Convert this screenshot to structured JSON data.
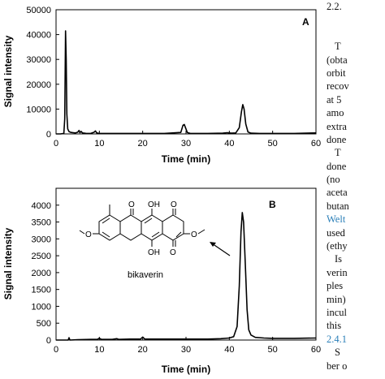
{
  "chart_data": [
    {
      "panel_label": "A",
      "type": "line",
      "xlabel": "Time (min)",
      "ylabel": "Signal intensity",
      "xlim": [
        0,
        60
      ],
      "ylim": [
        0,
        50000
      ],
      "xticks": [
        "0",
        "10",
        "20",
        "30",
        "40",
        "50",
        "60"
      ],
      "yticks": [
        "0",
        "10000",
        "20000",
        "30000",
        "40000",
        "50000"
      ],
      "grid": false,
      "series": [
        {
          "x": [
            0,
            1.0,
            1.8,
            2.0,
            2.2,
            2.35,
            2.5,
            2.7,
            3.0,
            3.5,
            4.0,
            4.5,
            5.0,
            5.3,
            5.5,
            5.8,
            6.1,
            6.5,
            7.0,
            8.0,
            8.8,
            9.1,
            9.4,
            10,
            12,
            15,
            20,
            25,
            28.8,
            29.3,
            29.6,
            29.9,
            30.3,
            31,
            35,
            38.5,
            39.5,
            40,
            40.5,
            41.5,
            42.3,
            42.8,
            43.1,
            43.4,
            43.8,
            44.3,
            45,
            47,
            50,
            55,
            60
          ],
          "y": [
            0,
            0,
            200,
            6000,
            41500,
            30000,
            8000,
            2000,
            900,
            600,
            500,
            400,
            700,
            1400,
            500,
            1000,
            400,
            300,
            200,
            200,
            700,
            1200,
            400,
            200,
            200,
            200,
            200,
            200,
            600,
            3500,
            3800,
            2400,
            600,
            200,
            200,
            300,
            500,
            400,
            300,
            400,
            2500,
            9000,
            11800,
            10000,
            4000,
            800,
            300,
            200,
            200,
            200,
            400
          ]
        }
      ]
    },
    {
      "panel_label": "B",
      "type": "line",
      "xlabel": "Time (min)",
      "ylabel": "Signal intensity",
      "xlim": [
        0,
        60
      ],
      "ylim": [
        0,
        4500
      ],
      "xticks": [
        "0",
        "10",
        "20",
        "30",
        "40",
        "50",
        "60"
      ],
      "yticks": [
        "0",
        "500",
        "1000",
        "1500",
        "2000",
        "2500",
        "3000",
        "3500",
        "4000"
      ],
      "grid": false,
      "annotations": [
        {
          "text": "bikaverin"
        }
      ],
      "series": [
        {
          "x": [
            0,
            2.8,
            3.0,
            3.2,
            5,
            8,
            9.5,
            10,
            10.5,
            13,
            14,
            14.5,
            17,
            19.5,
            20,
            20.5,
            25,
            30,
            35,
            38,
            40,
            41,
            41.8,
            42.3,
            42.7,
            43.0,
            43.3,
            43.7,
            44.1,
            44.5,
            45,
            46,
            48,
            50,
            55,
            60
          ],
          "y": [
            0,
            0,
            70,
            0,
            10,
            20,
            20,
            50,
            20,
            20,
            40,
            20,
            30,
            30,
            90,
            30,
            30,
            30,
            30,
            40,
            60,
            100,
            400,
            1600,
            3200,
            3780,
            3500,
            2200,
            900,
            300,
            150,
            80,
            60,
            50,
            50,
            60
          ]
        }
      ]
    }
  ],
  "structure": {
    "label": "bikaverin",
    "atoms": [
      "OH",
      "O",
      "O",
      "OH",
      "O",
      "O",
      "O"
    ]
  },
  "side_text": {
    "heading": "2.2.",
    "lines": [
      "",
      "",
      "T",
      "(obta",
      "orbit",
      "recov",
      "at 5",
      "amo",
      "extra",
      "done",
      "T",
      "done",
      "(no",
      "aceta",
      "butan",
      "Welt",
      "used",
      "(ethy",
      "Is",
      "verin",
      "ples",
      "min)",
      "incul",
      "this",
      "2.4.1",
      "S",
      "ber o"
    ]
  }
}
